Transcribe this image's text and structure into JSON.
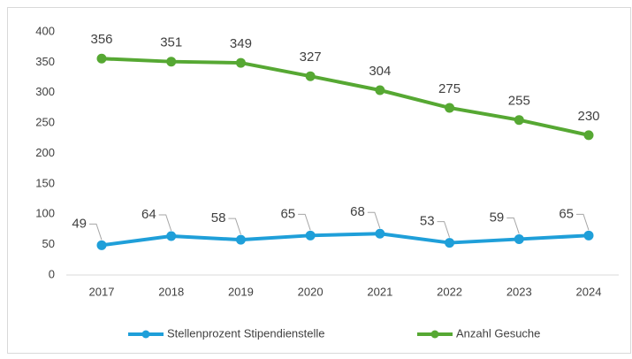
{
  "chart_data": {
    "type": "line",
    "categories": [
      "2017",
      "2018",
      "2019",
      "2020",
      "2021",
      "2022",
      "2023",
      "2024"
    ],
    "series": [
      {
        "name": "Stellenprozent Stipendienstelle",
        "color": "#1f9fd9",
        "values": [
          49,
          64,
          58,
          65,
          68,
          53,
          59,
          65
        ]
      },
      {
        "name": "Anzahl Gesuche",
        "color": "#56a833",
        "values": [
          356,
          351,
          349,
          327,
          304,
          275,
          255,
          230
        ]
      }
    ],
    "ylim": [
      0,
      400
    ],
    "yticks": [
      0,
      50,
      100,
      150,
      200,
      250,
      300,
      350,
      400
    ],
    "grid": false,
    "legend": "bottom"
  }
}
